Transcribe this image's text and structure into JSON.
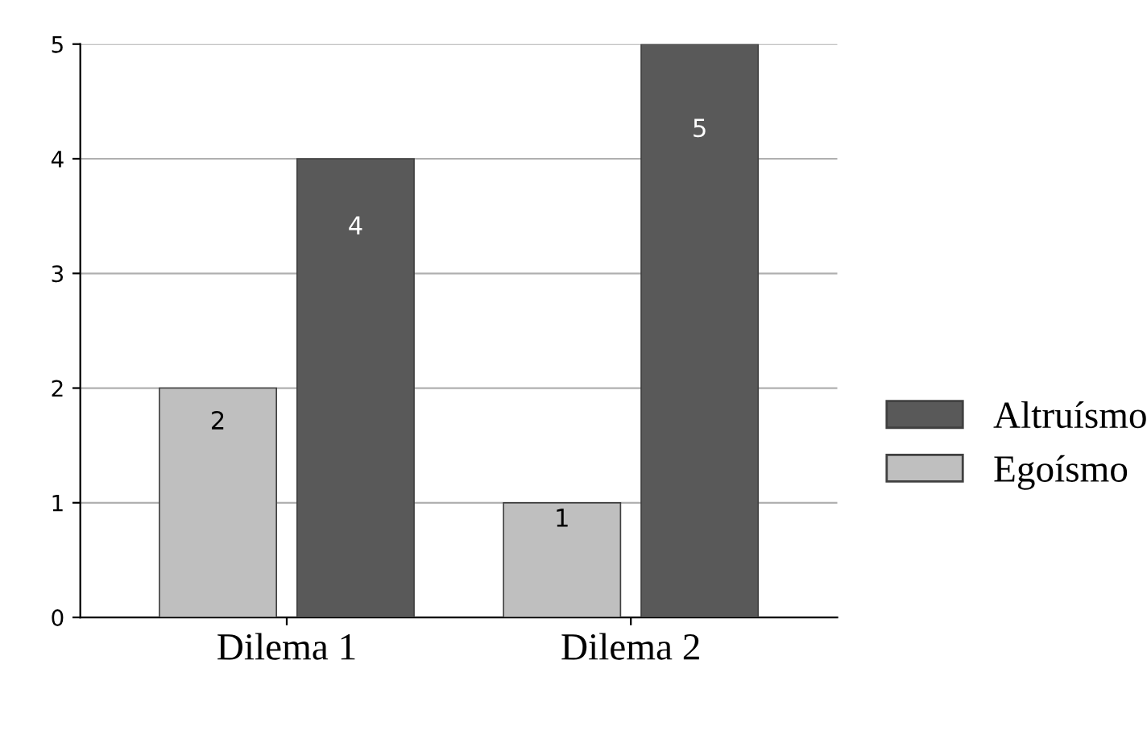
{
  "chart_data": {
    "type": "bar",
    "categories": [
      "Dilema 1",
      "Dilema 2"
    ],
    "series": [
      {
        "name": "Egoísmo",
        "color": "#bfbfbf",
        "values": [
          2,
          1
        ]
      },
      {
        "name": "Altruísmo",
        "color": "#595959",
        "values": [
          4,
          5
        ]
      }
    ],
    "ylim": [
      0,
      5
    ],
    "yticks": [
      0,
      1,
      2,
      3,
      4,
      5
    ],
    "grid": "y",
    "legend": "right",
    "data_labels": true
  }
}
